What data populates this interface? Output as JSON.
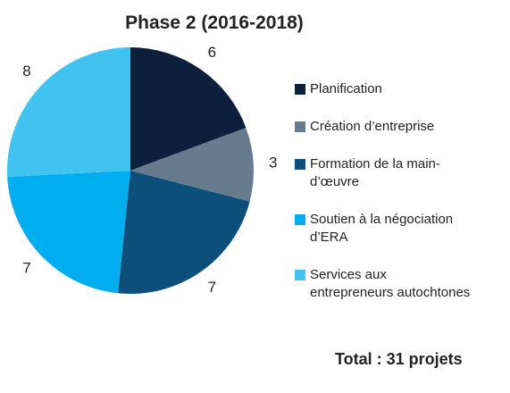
{
  "chart_data": {
    "type": "pie",
    "title": "Phase 2 (2016-2018)",
    "categories": [
      "Planification",
      "Création d’entreprise",
      "Formation de la main-d’œuvre",
      "Soutien à la négociation d’ERA",
      "Services aux entrepreneurs autochtones"
    ],
    "values": [
      6,
      3,
      7,
      7,
      8
    ],
    "colors": [
      "#0c1f3d",
      "#677b8e",
      "#0c4f7b",
      "#00adee",
      "#41c3f1"
    ],
    "annotation": "Total : 31 projets"
  }
}
